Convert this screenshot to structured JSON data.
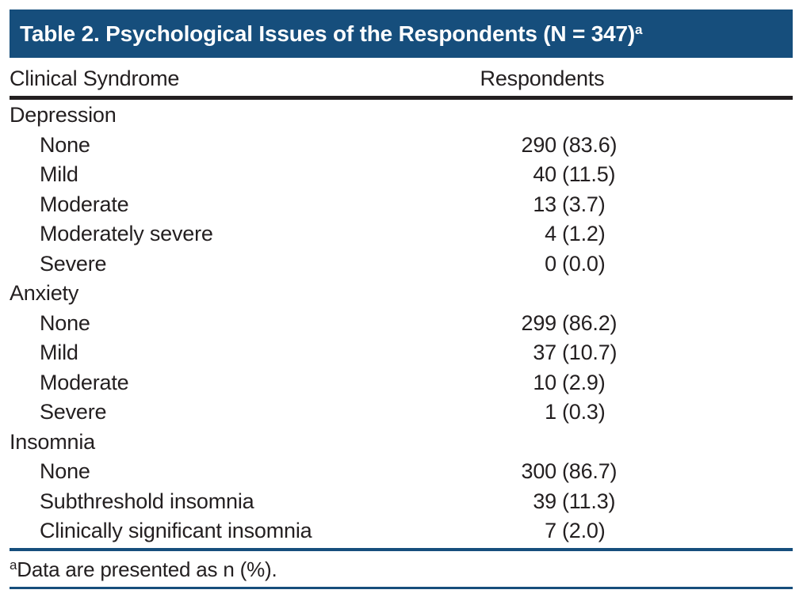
{
  "table": {
    "title": "Table 2. Psychological Issues of the Respondents (N = 347)",
    "title_superscript": "a",
    "columns": [
      "Clinical Syndrome",
      "Respondents"
    ],
    "groups": [
      {
        "label": "Depression",
        "rows": [
          {
            "label": "None",
            "n": "290",
            "pct": "(83.6)"
          },
          {
            "label": "Mild",
            "n": "40",
            "pct": "(11.5)"
          },
          {
            "label": "Moderate",
            "n": "13",
            "pct": "(3.7)"
          },
          {
            "label": "Moderately severe",
            "n": "4",
            "pct": "(1.2)"
          },
          {
            "label": "Severe",
            "n": "0",
            "pct": "(0.0)"
          }
        ]
      },
      {
        "label": "Anxiety",
        "rows": [
          {
            "label": "None",
            "n": "299",
            "pct": "(86.2)"
          },
          {
            "label": "Mild",
            "n": "37",
            "pct": "(10.7)"
          },
          {
            "label": "Moderate",
            "n": "10",
            "pct": "(2.9)"
          },
          {
            "label": "Severe",
            "n": "1",
            "pct": "(0.3)"
          }
        ]
      },
      {
        "label": "Insomnia",
        "rows": [
          {
            "label": "None",
            "n": "300",
            "pct": "(86.7)"
          },
          {
            "label": "Subthreshold insomnia",
            "n": "39",
            "pct": "(11.3)"
          },
          {
            "label": "Clinically significant insomnia",
            "n": "7",
            "pct": "(2.0)"
          }
        ]
      }
    ],
    "footnote_superscript": "a",
    "footnote_text": "Data are presented as n (%).",
    "colors": {
      "header_bg": "#164e7c",
      "rule_blue": "#164e7c",
      "rule_black": "#231f20",
      "text": "#231f20",
      "title_text": "#ffffff"
    }
  }
}
